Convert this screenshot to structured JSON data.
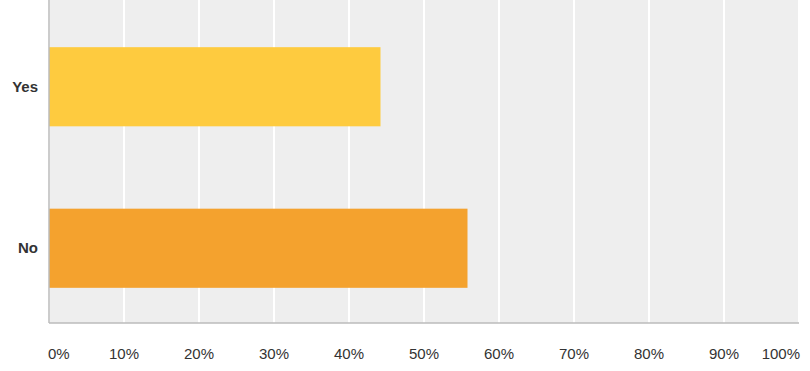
{
  "chart_data": {
    "type": "bar",
    "orientation": "horizontal",
    "categories": [
      "Yes",
      "No"
    ],
    "values": [
      44.2,
      55.8
    ],
    "colors": [
      "#fecb3f",
      "#f4a22e"
    ],
    "xlim": [
      0,
      100
    ],
    "xticks": [
      {
        "value": 0,
        "label": "0%"
      },
      {
        "value": 10,
        "label": "10%"
      },
      {
        "value": 20,
        "label": "20%"
      },
      {
        "value": 30,
        "label": "30%"
      },
      {
        "value": 40,
        "label": "40%"
      },
      {
        "value": 50,
        "label": "50%"
      },
      {
        "value": 60,
        "label": "60%"
      },
      {
        "value": 70,
        "label": "70%"
      },
      {
        "value": 80,
        "label": "80%"
      },
      {
        "value": 90,
        "label": "90%"
      },
      {
        "value": 100,
        "label": "100%"
      }
    ],
    "grid": true
  }
}
